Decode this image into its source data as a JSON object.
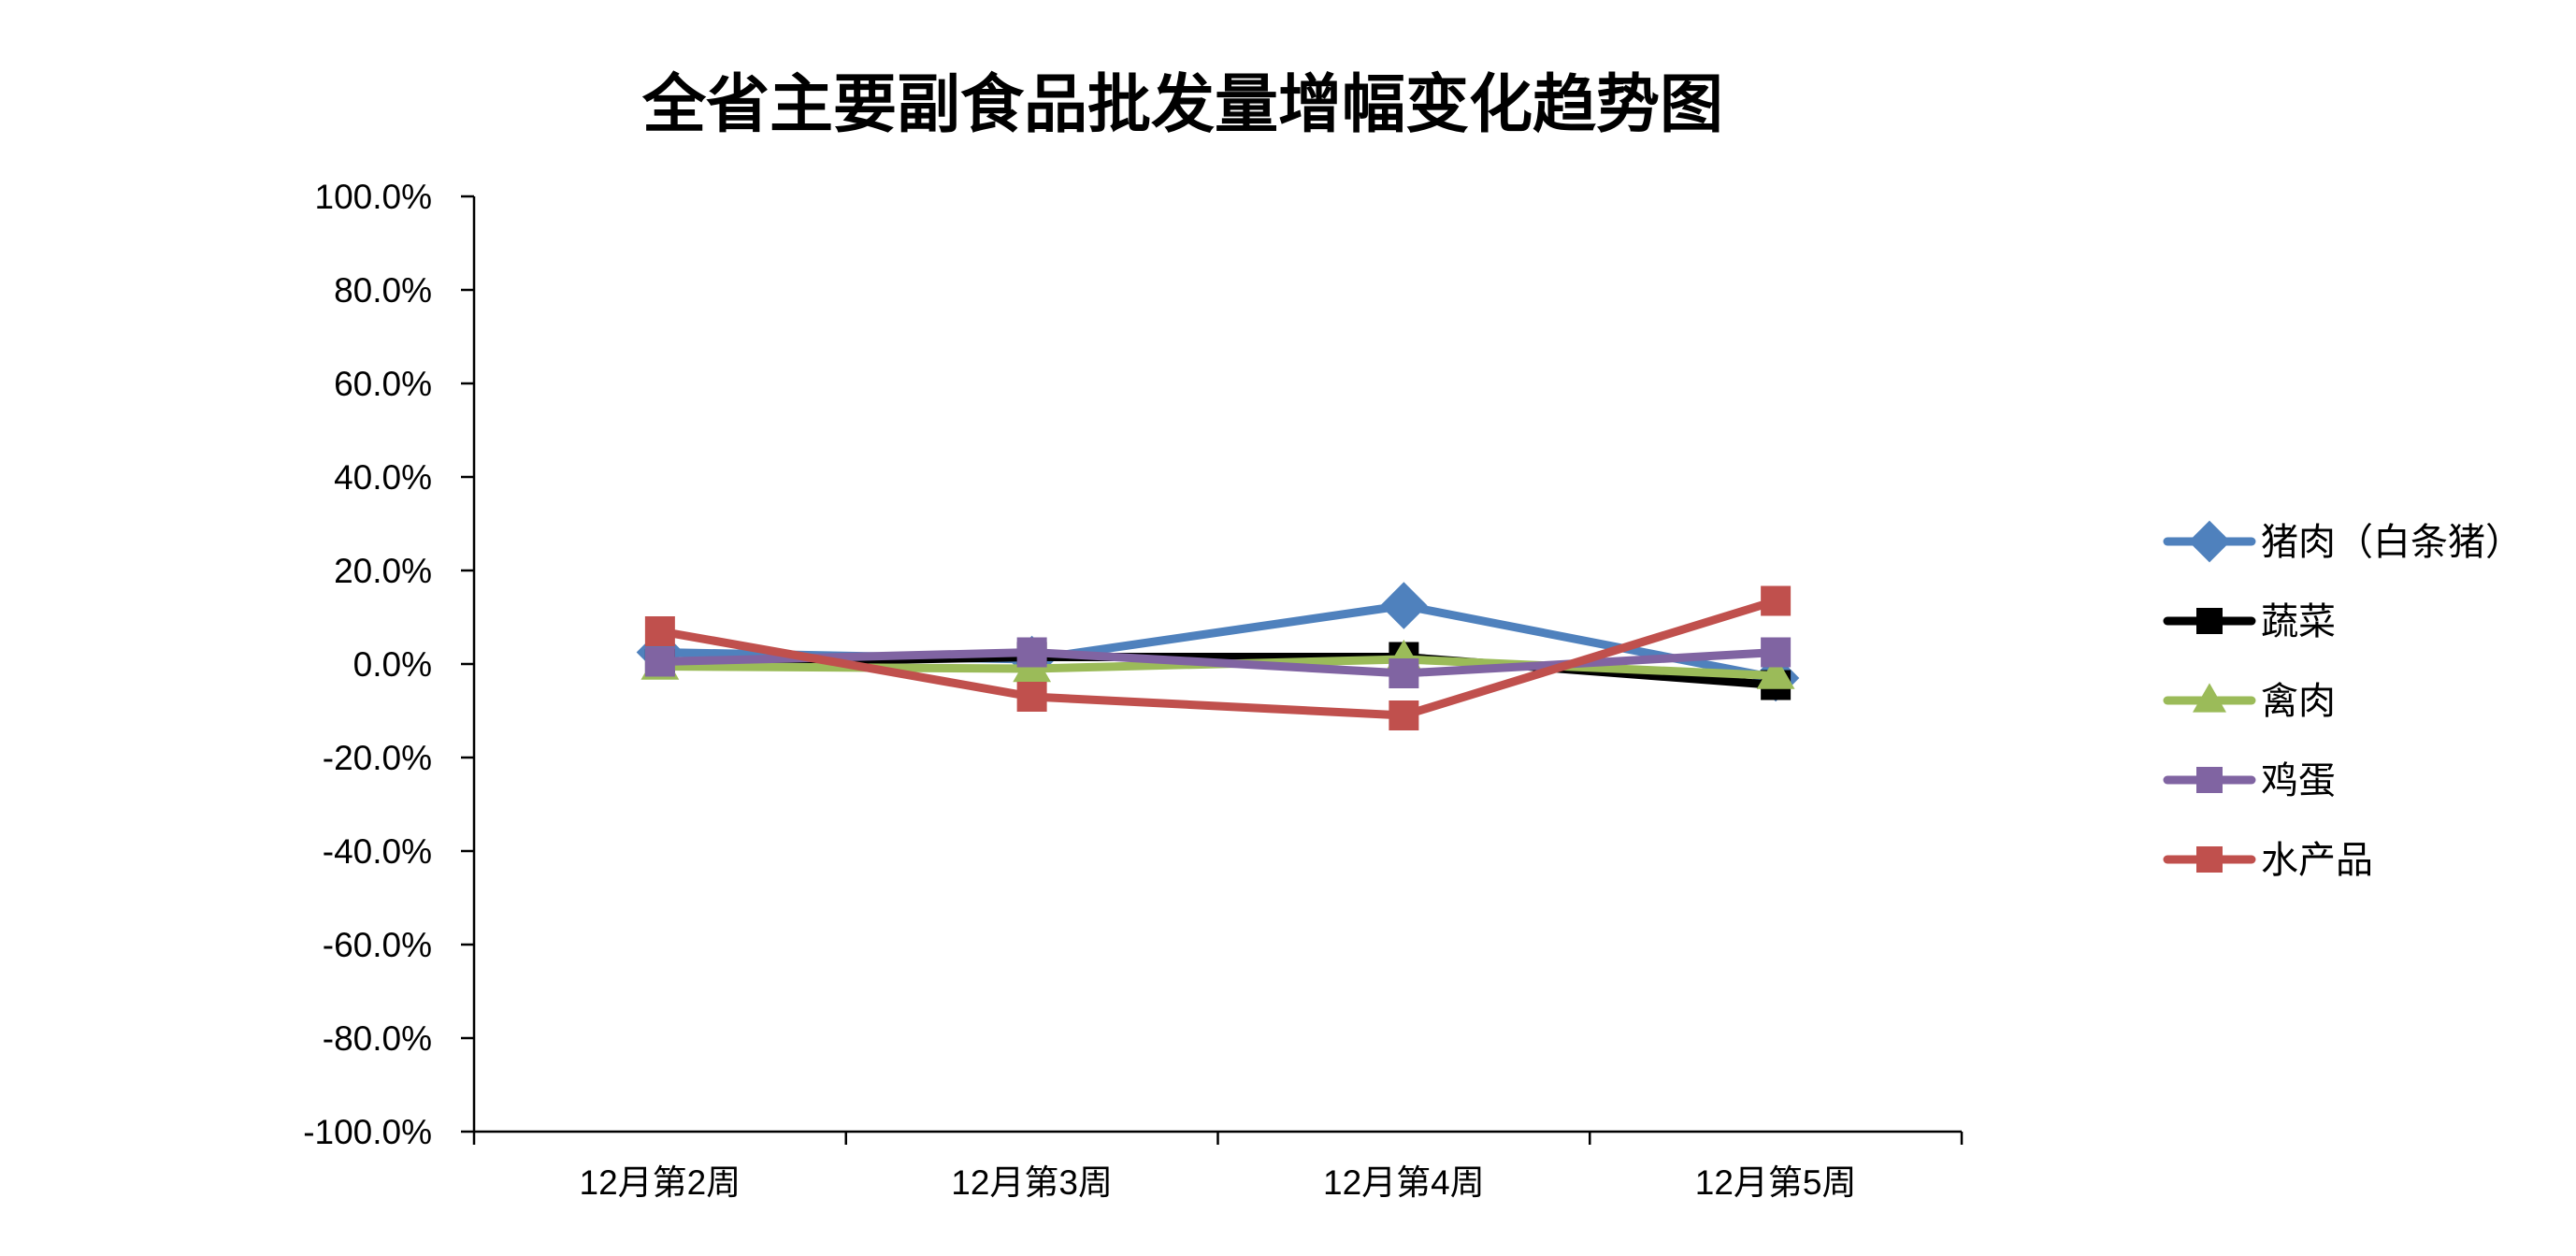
{
  "chart_data": {
    "type": "line",
    "title": "全省主要副食品批发量增幅变化趋势图",
    "xlabel": "",
    "ylabel": "",
    "categories": [
      "12月第2周",
      "12月第3周",
      "12月第4周",
      "12月第5周"
    ],
    "ylim": [
      -100,
      100
    ],
    "yticks": [
      -100,
      -80,
      -60,
      -40,
      -20,
      0,
      20,
      40,
      60,
      80,
      100
    ],
    "ytick_labels": [
      "-100.0%",
      "-80.0%",
      "-60.0%",
      "-40.0%",
      "-20.0%",
      "0.0%",
      "20.0%",
      "40.0%",
      "60.0%",
      "80.0%",
      "100.0%"
    ],
    "grid": false,
    "legend_position": "right",
    "series": [
      {
        "name": "猪肉（白条猪）",
        "values": [
          2.5,
          1.0,
          12.5,
          -3.0
        ],
        "color": "#4F81BD",
        "marker": "diamond"
      },
      {
        "name": "蔬菜",
        "values": [
          0.0,
          1.5,
          1.5,
          -4.5
        ],
        "color": "#000000",
        "marker": "square"
      },
      {
        "name": "禽肉",
        "values": [
          -0.5,
          -1.0,
          1.0,
          -2.5
        ],
        "color": "#9BBB59",
        "marker": "triangle"
      },
      {
        "name": "鸡蛋",
        "values": [
          0.5,
          2.5,
          -2.0,
          2.5
        ],
        "color": "#8064A2",
        "marker": "square"
      },
      {
        "name": "水产品",
        "values": [
          7.0,
          -7.0,
          -11.0,
          13.5
        ],
        "color": "#C0504D",
        "marker": "square"
      }
    ]
  }
}
